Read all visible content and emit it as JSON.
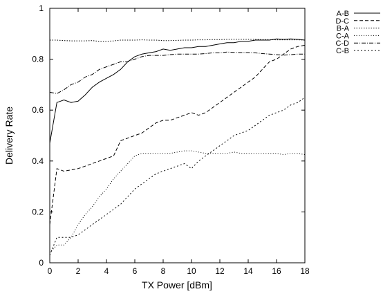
{
  "chart_data": {
    "type": "line",
    "xlabel": "TX Power [dBm]",
    "ylabel": "Delivery Rate",
    "xlim": [
      0,
      18
    ],
    "ylim": [
      0,
      1
    ],
    "xticks": [
      "0",
      "2",
      "4",
      "6",
      "8",
      "10",
      "12",
      "14",
      "16",
      "18"
    ],
    "yticks": [
      "0",
      "0.2",
      "0.4",
      "0.6",
      "0.8",
      "1"
    ],
    "grid": false,
    "legend_position": "outside-top-right",
    "x": [
      0,
      0.5,
      1,
      1.5,
      2,
      2.5,
      3,
      3.5,
      4,
      4.5,
      5,
      5.5,
      6,
      6.5,
      7,
      7.5,
      8,
      8.5,
      9,
      9.5,
      10,
      10.5,
      11,
      11.5,
      12,
      12.5,
      13,
      13.5,
      14,
      14.5,
      15,
      15.5,
      16,
      16.5,
      17,
      17.5,
      18
    ],
    "series": [
      {
        "name": "A-B",
        "dash": "",
        "values": [
          0.47,
          0.63,
          0.64,
          0.63,
          0.635,
          0.66,
          0.69,
          0.71,
          0.725,
          0.74,
          0.76,
          0.79,
          0.81,
          0.82,
          0.825,
          0.83,
          0.84,
          0.835,
          0.84,
          0.845,
          0.845,
          0.85,
          0.85,
          0.855,
          0.86,
          0.865,
          0.865,
          0.87,
          0.87,
          0.875,
          0.875,
          0.875,
          0.88,
          0.878,
          0.88,
          0.878,
          0.875
        ]
      },
      {
        "name": "D-C",
        "dash": "5,3",
        "values": [
          0.15,
          0.37,
          0.36,
          0.365,
          0.37,
          0.38,
          0.39,
          0.4,
          0.41,
          0.42,
          0.48,
          0.49,
          0.5,
          0.51,
          0.53,
          0.55,
          0.56,
          0.56,
          0.57,
          0.58,
          0.59,
          0.58,
          0.59,
          0.61,
          0.63,
          0.65,
          0.67,
          0.69,
          0.71,
          0.73,
          0.76,
          0.79,
          0.8,
          0.82,
          0.84,
          0.85,
          0.855
        ]
      },
      {
        "name": "B-A",
        "dash": "1.5,2",
        "values": [
          0.875,
          0.875,
          0.873,
          0.872,
          0.872,
          0.872,
          0.873,
          0.87,
          0.87,
          0.872,
          0.875,
          0.875,
          0.875,
          0.876,
          0.875,
          0.875,
          0.873,
          0.873,
          0.874,
          0.875,
          0.875,
          0.876,
          0.876,
          0.877,
          0.877,
          0.878,
          0.878,
          0.878,
          0.878,
          0.878,
          0.877,
          0.877,
          0.876,
          0.876,
          0.876,
          0.876,
          0.875
        ]
      },
      {
        "name": "C-A",
        "dash": "1,2.5",
        "values": [
          0.04,
          0.07,
          0.07,
          0.1,
          0.15,
          0.19,
          0.22,
          0.26,
          0.29,
          0.33,
          0.36,
          0.39,
          0.42,
          0.43,
          0.43,
          0.43,
          0.43,
          0.43,
          0.435,
          0.44,
          0.44,
          0.435,
          0.43,
          0.43,
          0.43,
          0.43,
          0.435,
          0.43,
          0.43,
          0.43,
          0.43,
          0.43,
          0.43,
          0.425,
          0.43,
          0.43,
          0.425
        ]
      },
      {
        "name": "C-D",
        "dash": "6,2,1,2",
        "values": [
          0.67,
          0.665,
          0.68,
          0.7,
          0.71,
          0.73,
          0.74,
          0.76,
          0.77,
          0.78,
          0.79,
          0.79,
          0.8,
          0.81,
          0.815,
          0.815,
          0.815,
          0.818,
          0.82,
          0.82,
          0.82,
          0.82,
          0.822,
          0.825,
          0.825,
          0.828,
          0.827,
          0.826,
          0.826,
          0.825,
          0.822,
          0.82,
          0.818,
          0.816,
          0.818,
          0.82,
          0.82
        ]
      },
      {
        "name": "C-B",
        "dash": "2,3",
        "values": [
          0.03,
          0.1,
          0.1,
          0.1,
          0.11,
          0.13,
          0.15,
          0.17,
          0.19,
          0.21,
          0.23,
          0.26,
          0.29,
          0.31,
          0.33,
          0.35,
          0.36,
          0.37,
          0.38,
          0.39,
          0.37,
          0.4,
          0.42,
          0.44,
          0.46,
          0.48,
          0.5,
          0.51,
          0.52,
          0.54,
          0.56,
          0.58,
          0.59,
          0.6,
          0.62,
          0.63,
          0.65
        ]
      }
    ]
  }
}
